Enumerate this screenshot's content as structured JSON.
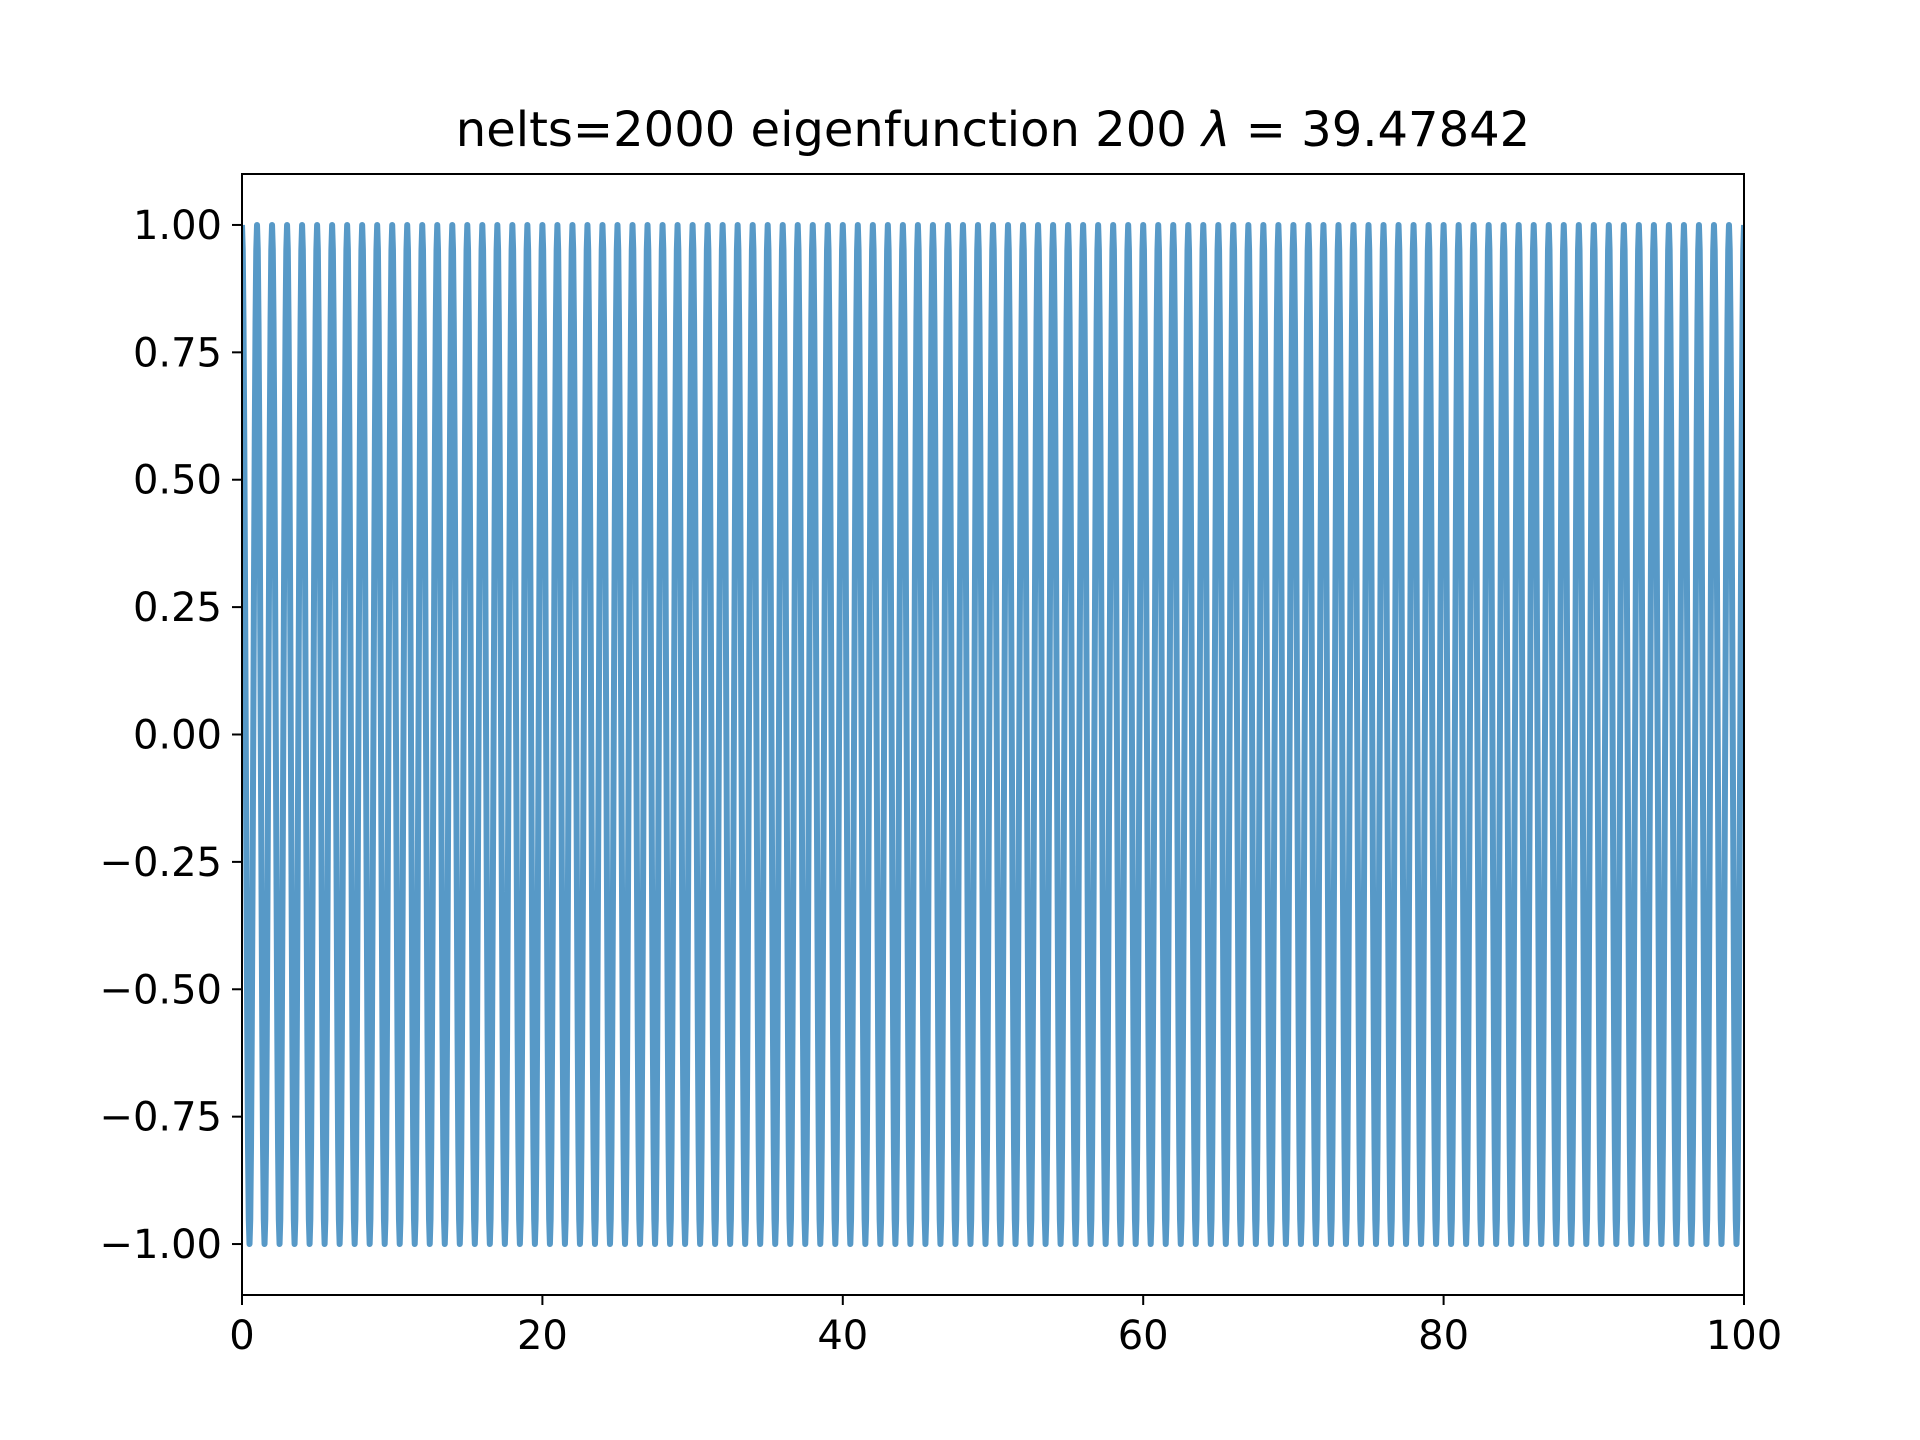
{
  "chart_data": {
    "type": "line",
    "title_prefix": "nelts=2000  eigenfunction 200  ",
    "title_symbol": "λ",
    "title_suffix": " = 39.47842",
    "xlabel": "",
    "ylabel": "",
    "xlim": [
      0,
      100
    ],
    "ylim": [
      -1.1,
      1.1
    ],
    "xticks": [
      "0",
      "20",
      "40",
      "60",
      "80",
      "100"
    ],
    "yticks": [
      "−1.00",
      "−0.75",
      "−0.50",
      "−0.25",
      "0.00",
      "0.25",
      "0.50",
      "0.75",
      "1.00"
    ],
    "grid": false,
    "series": [
      {
        "function": "cos(2*pi*x)",
        "x_range": [
          0,
          100
        ],
        "amplitude": 1.0,
        "period": 1.0,
        "points": 2001,
        "color": "#1f77b4",
        "opacity": 0.75
      }
    ]
  }
}
